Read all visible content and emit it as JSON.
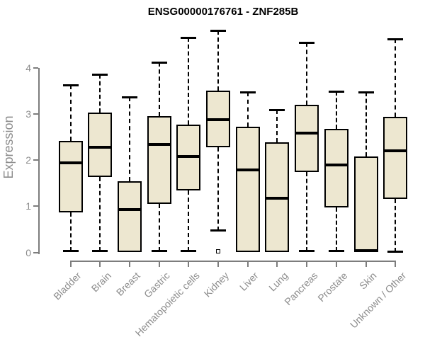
{
  "colors": {
    "box_fill": "#EDE7D0",
    "box_border": "#000000",
    "axis": "#7d7d7d",
    "tick_label": "#8c8c8c",
    "title": "#000000"
  },
  "chart_data": {
    "type": "boxplot",
    "title": "ENSG00000176761 - ZNF285B",
    "xlabel": "",
    "ylabel": "Expression",
    "ylim": [
      0,
      4.9
    ],
    "yticks": [
      0,
      1,
      2,
      3,
      4
    ],
    "grid": false,
    "legend": "none",
    "categories": [
      "Bladder",
      "Brain",
      "Breast",
      "Gastric",
      "Hematopoietic cells",
      "Kidney",
      "Liver",
      "Lung",
      "Pancreas",
      "Prostate",
      "Skin",
      "Unknown / Other"
    ],
    "boxes": [
      {
        "category": "Bladder",
        "whisker_low": 0.03,
        "q1": 0.87,
        "median": 1.94,
        "q3": 2.41,
        "whisker_high": 3.63,
        "outliers": []
      },
      {
        "category": "Brain",
        "whisker_low": 0.03,
        "q1": 1.63,
        "median": 2.27,
        "q3": 3.02,
        "whisker_high": 3.85,
        "outliers": []
      },
      {
        "category": "Breast",
        "whisker_low": 0.0,
        "q1": 0.0,
        "median": 0.92,
        "q3": 1.54,
        "whisker_high": 3.37,
        "outliers": []
      },
      {
        "category": "Gastric",
        "whisker_low": 0.02,
        "q1": 1.05,
        "median": 2.33,
        "q3": 2.95,
        "whisker_high": 4.11,
        "outliers": []
      },
      {
        "category": "Hematopoietic cells",
        "whisker_low": 0.03,
        "q1": 1.34,
        "median": 2.07,
        "q3": 2.76,
        "whisker_high": 4.65,
        "outliers": []
      },
      {
        "category": "Kidney",
        "whisker_low": 0.46,
        "q1": 2.28,
        "median": 2.87,
        "q3": 3.5,
        "whisker_high": 4.81,
        "outliers": [
          0.02
        ]
      },
      {
        "category": "Liver",
        "whisker_low": 0.0,
        "q1": 0.0,
        "median": 1.79,
        "q3": 2.72,
        "whisker_high": 3.47,
        "outliers": []
      },
      {
        "category": "Lung",
        "whisker_low": 0.0,
        "q1": 0.0,
        "median": 1.17,
        "q3": 2.38,
        "whisker_high": 3.09,
        "outliers": []
      },
      {
        "category": "Pancreas",
        "whisker_low": 0.02,
        "q1": 1.74,
        "median": 2.58,
        "q3": 3.2,
        "whisker_high": 4.54,
        "outliers": []
      },
      {
        "category": "Prostate",
        "whisker_low": 0.02,
        "q1": 0.98,
        "median": 1.89,
        "q3": 2.68,
        "whisker_high": 3.48,
        "outliers": []
      },
      {
        "category": "Skin",
        "whisker_low": 0.0,
        "q1": 0.0,
        "median": 0.04,
        "q3": 2.08,
        "whisker_high": 3.47,
        "outliers": []
      },
      {
        "category": "Unknown / Other",
        "whisker_low": 0.01,
        "q1": 1.15,
        "median": 2.2,
        "q3": 2.94,
        "whisker_high": 4.62,
        "outliers": []
      }
    ]
  }
}
